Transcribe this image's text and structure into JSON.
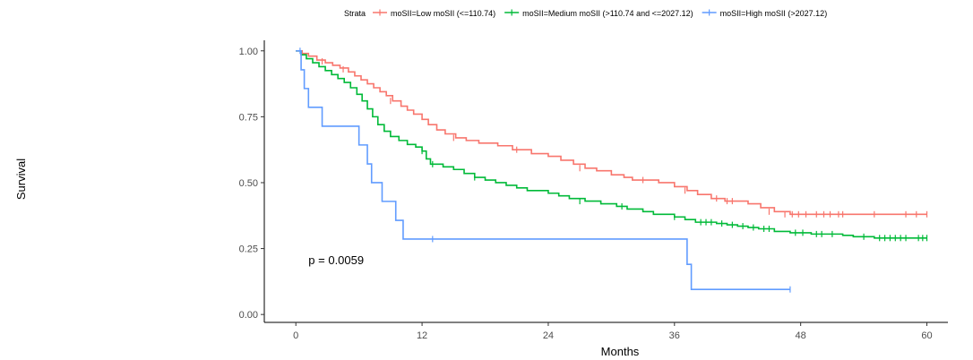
{
  "chart_data": {
    "type": "line",
    "xlabel": "Months",
    "ylabel": "Survival",
    "xlim": [
      -3,
      62
    ],
    "ylim": [
      -0.03,
      1.04
    ],
    "x_ticks": [
      0,
      12,
      24,
      36,
      48,
      60
    ],
    "y_ticks": [
      0.0,
      0.25,
      0.5,
      0.75,
      1.0
    ],
    "y_tick_labels": [
      "0.00",
      "0.25",
      "0.50",
      "0.75",
      "1.00"
    ],
    "grid": false,
    "legend_title": "Strata",
    "legend_position": "top",
    "annotations": [
      {
        "text": "p = 0.0059",
        "x": 1.2,
        "y": 0.19
      }
    ],
    "series": [
      {
        "name": "moSII=Low moSII (<=110.74)",
        "color": "#F8766D",
        "steps": [
          [
            0,
            1.0
          ],
          [
            0.6,
            0.99
          ],
          [
            1.2,
            0.98
          ],
          [
            2.0,
            0.965
          ],
          [
            2.8,
            0.955
          ],
          [
            3.5,
            0.945
          ],
          [
            4.2,
            0.935
          ],
          [
            5.0,
            0.92
          ],
          [
            5.6,
            0.905
          ],
          [
            6.2,
            0.89
          ],
          [
            6.8,
            0.875
          ],
          [
            7.4,
            0.86
          ],
          [
            8.0,
            0.845
          ],
          [
            8.6,
            0.83
          ],
          [
            9.2,
            0.81
          ],
          [
            10.0,
            0.79
          ],
          [
            10.6,
            0.775
          ],
          [
            11.2,
            0.76
          ],
          [
            12.0,
            0.74
          ],
          [
            12.6,
            0.72
          ],
          [
            13.4,
            0.7
          ],
          [
            14.2,
            0.685
          ],
          [
            15.2,
            0.67
          ],
          [
            16.2,
            0.66
          ],
          [
            17.4,
            0.65
          ],
          [
            19.2,
            0.64
          ],
          [
            20.6,
            0.625
          ],
          [
            22.4,
            0.61
          ],
          [
            24.0,
            0.6
          ],
          [
            25.2,
            0.585
          ],
          [
            26.4,
            0.57
          ],
          [
            27.5,
            0.555
          ],
          [
            28.6,
            0.545
          ],
          [
            30.0,
            0.53
          ],
          [
            31.2,
            0.52
          ],
          [
            32.0,
            0.51
          ],
          [
            34.5,
            0.5
          ],
          [
            36.0,
            0.485
          ],
          [
            37.2,
            0.47
          ],
          [
            38.2,
            0.455
          ],
          [
            39.5,
            0.44
          ],
          [
            40.8,
            0.43
          ],
          [
            43.0,
            0.42
          ],
          [
            44.2,
            0.405
          ],
          [
            45.5,
            0.39
          ],
          [
            47.0,
            0.38
          ],
          [
            60.0,
            0.38
          ]
        ],
        "censors": [
          [
            2.5,
            0.96
          ],
          [
            4.5,
            0.93
          ],
          [
            9.0,
            0.81
          ],
          [
            15.0,
            0.67
          ],
          [
            21.0,
            0.625
          ],
          [
            27.0,
            0.555
          ],
          [
            33.0,
            0.51
          ],
          [
            37.0,
            0.47
          ],
          [
            40.0,
            0.44
          ],
          [
            41.0,
            0.43
          ],
          [
            41.5,
            0.43
          ],
          [
            45.0,
            0.39
          ],
          [
            46.5,
            0.38
          ],
          [
            47.2,
            0.38
          ],
          [
            47.8,
            0.38
          ],
          [
            48.5,
            0.38
          ],
          [
            49.5,
            0.38
          ],
          [
            50.2,
            0.38
          ],
          [
            50.8,
            0.38
          ],
          [
            51.6,
            0.38
          ],
          [
            52.0,
            0.38
          ],
          [
            55.0,
            0.38
          ],
          [
            58.0,
            0.38
          ],
          [
            59.0,
            0.38
          ],
          [
            60.0,
            0.38
          ]
        ]
      },
      {
        "name": "moSII=Medium moSII (>110.74 and <=2027.12)",
        "color": "#00BA38",
        "steps": [
          [
            0,
            1.0
          ],
          [
            0.5,
            0.985
          ],
          [
            1.0,
            0.97
          ],
          [
            1.6,
            0.955
          ],
          [
            2.2,
            0.94
          ],
          [
            2.8,
            0.925
          ],
          [
            3.4,
            0.91
          ],
          [
            4.0,
            0.895
          ],
          [
            4.6,
            0.88
          ],
          [
            5.2,
            0.86
          ],
          [
            5.8,
            0.835
          ],
          [
            6.3,
            0.81
          ],
          [
            6.8,
            0.78
          ],
          [
            7.3,
            0.75
          ],
          [
            7.8,
            0.72
          ],
          [
            8.4,
            0.695
          ],
          [
            9.0,
            0.675
          ],
          [
            9.8,
            0.66
          ],
          [
            10.6,
            0.645
          ],
          [
            11.4,
            0.635
          ],
          [
            12.0,
            0.62
          ],
          [
            12.4,
            0.59
          ],
          [
            12.8,
            0.57
          ],
          [
            14.0,
            0.56
          ],
          [
            15.0,
            0.55
          ],
          [
            16.0,
            0.535
          ],
          [
            17.0,
            0.52
          ],
          [
            18.0,
            0.51
          ],
          [
            19.0,
            0.5
          ],
          [
            20.0,
            0.49
          ],
          [
            21.0,
            0.48
          ],
          [
            22.0,
            0.47
          ],
          [
            24.0,
            0.46
          ],
          [
            25.0,
            0.45
          ],
          [
            26.0,
            0.44
          ],
          [
            27.5,
            0.43
          ],
          [
            29.0,
            0.42
          ],
          [
            30.5,
            0.41
          ],
          [
            31.5,
            0.4
          ],
          [
            33.0,
            0.39
          ],
          [
            34.0,
            0.38
          ],
          [
            36.0,
            0.37
          ],
          [
            37.0,
            0.36
          ],
          [
            38.0,
            0.35
          ],
          [
            40.0,
            0.345
          ],
          [
            41.0,
            0.34
          ],
          [
            42.0,
            0.335
          ],
          [
            43.0,
            0.33
          ],
          [
            44.0,
            0.325
          ],
          [
            45.5,
            0.315
          ],
          [
            47.0,
            0.31
          ],
          [
            49.0,
            0.305
          ],
          [
            52.0,
            0.3
          ],
          [
            53.0,
            0.295
          ],
          [
            55.0,
            0.29
          ],
          [
            60.0,
            0.29
          ]
        ],
        "censors": [
          [
            12.0,
            0.62
          ],
          [
            13.0,
            0.57
          ],
          [
            17.0,
            0.52
          ],
          [
            27.0,
            0.43
          ],
          [
            31.0,
            0.41
          ],
          [
            36.0,
            0.37
          ],
          [
            38.5,
            0.35
          ],
          [
            39.0,
            0.35
          ],
          [
            39.5,
            0.35
          ],
          [
            40.5,
            0.345
          ],
          [
            41.5,
            0.34
          ],
          [
            42.5,
            0.335
          ],
          [
            43.5,
            0.33
          ],
          [
            44.5,
            0.325
          ],
          [
            45.0,
            0.325
          ],
          [
            47.5,
            0.31
          ],
          [
            48.2,
            0.31
          ],
          [
            49.5,
            0.305
          ],
          [
            50.0,
            0.305
          ],
          [
            51.0,
            0.305
          ],
          [
            54.0,
            0.295
          ],
          [
            55.5,
            0.29
          ],
          [
            56.0,
            0.29
          ],
          [
            56.5,
            0.29
          ],
          [
            57.0,
            0.29
          ],
          [
            57.5,
            0.29
          ],
          [
            58.0,
            0.29
          ],
          [
            59.2,
            0.29
          ],
          [
            59.6,
            0.29
          ],
          [
            60.0,
            0.29
          ]
        ]
      },
      {
        "name": "moSII=High moSII (>2027.12)",
        "color": "#619CFF",
        "steps": [
          [
            0,
            1.0
          ],
          [
            0.5,
            0.928
          ],
          [
            0.8,
            0.857
          ],
          [
            1.2,
            0.786
          ],
          [
            2.5,
            0.714
          ],
          [
            6.0,
            0.643
          ],
          [
            6.8,
            0.571
          ],
          [
            7.2,
            0.5
          ],
          [
            8.2,
            0.429
          ],
          [
            9.5,
            0.357
          ],
          [
            10.2,
            0.286
          ],
          [
            37.2,
            0.19
          ],
          [
            37.6,
            0.095
          ],
          [
            47.0,
            0.095
          ]
        ],
        "censors": [
          [
            0.4,
            1.0
          ],
          [
            13.0,
            0.286
          ],
          [
            47.0,
            0.095
          ]
        ]
      }
    ]
  }
}
